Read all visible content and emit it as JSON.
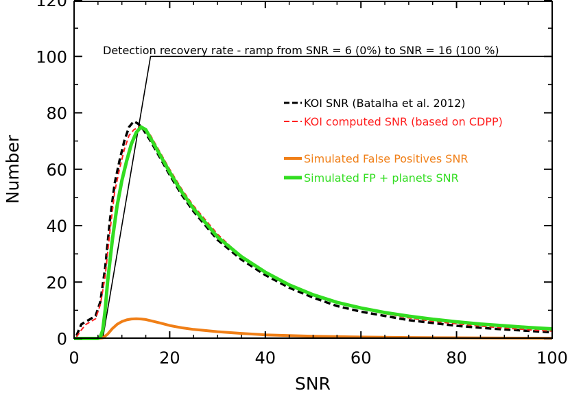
{
  "chart_data": {
    "type": "line",
    "title": "",
    "xlabel": "SNR",
    "ylabel": "Number",
    "xlim": [
      0,
      100
    ],
    "ylim": [
      0,
      120
    ],
    "xticks": [
      "0",
      "20",
      "40",
      "60",
      "80",
      "100"
    ],
    "yticks": [
      "0",
      "20",
      "40",
      "60",
      "80",
      "100",
      "120"
    ],
    "annotation": "Detection recovery rate - ramp from SNR = 6 (0%) to SNR = 16 (100 %)",
    "ramp": {
      "x": [
        6,
        16,
        100
      ],
      "y": [
        0,
        100,
        100
      ],
      "color": "#000000"
    },
    "series": [
      {
        "name": "KOI SNR (Batalha et al. 2012)",
        "style": "dashed",
        "color": "#000000",
        "x": [
          0.5,
          1.5,
          2.5,
          3.5,
          4.5,
          5.5,
          6.5,
          7.5,
          8.5,
          9.5,
          10.5,
          11.5,
          12.5,
          13.5,
          14.5,
          16,
          18,
          20,
          22.5,
          25,
          27.5,
          30,
          35,
          40,
          45,
          50,
          55,
          60,
          65,
          70,
          75,
          80,
          85,
          90,
          95,
          100
        ],
        "y": [
          1,
          5,
          6,
          7,
          8,
          13,
          25,
          42,
          55,
          63,
          70,
          75,
          77,
          76,
          74,
          70,
          64,
          58,
          51,
          45,
          40,
          35,
          28,
          22.5,
          18,
          14.5,
          11.5,
          9.5,
          8,
          6.5,
          5.5,
          4.5,
          3.8,
          3.2,
          2.7,
          2.2
        ]
      },
      {
        "name": "KOI computed SNR (based on CDPP)",
        "style": "dashed",
        "color": "#ff2020",
        "x": [
          0.5,
          1.5,
          2.5,
          3.5,
          4.5,
          5.5,
          6.5,
          7.5,
          8.5,
          9.5,
          10.5,
          11.5,
          12.5,
          13.5,
          14.5,
          16,
          18,
          20,
          22.5,
          25,
          27.5,
          30,
          35,
          40,
          45,
          50,
          55,
          60,
          65,
          70,
          75,
          80,
          85,
          90,
          95,
          100
        ],
        "y": [
          0.5,
          3,
          5,
          6,
          7,
          12,
          22,
          38,
          52,
          60,
          67,
          72,
          74,
          75,
          75,
          72,
          66,
          60,
          53,
          47,
          42,
          37,
          29,
          23.5,
          19,
          15.5,
          12.5,
          10.5,
          8.8,
          7.3,
          6.1,
          5.2,
          4.4,
          3.7,
          3.1,
          2.6
        ]
      },
      {
        "name": "Simulated False Positives SNR",
        "style": "solid",
        "color": "#f07f17",
        "x": [
          0,
          5,
          6,
          7,
          8,
          9,
          10,
          11,
          12,
          13,
          14,
          15,
          16,
          18,
          20,
          22.5,
          25,
          30,
          35,
          40,
          50,
          60,
          70,
          80,
          90,
          100
        ],
        "y": [
          0,
          0,
          0.2,
          1.5,
          3.5,
          5,
          6,
          6.6,
          6.9,
          7,
          6.9,
          6.7,
          6.3,
          5.5,
          4.6,
          3.8,
          3.2,
          2.4,
          1.8,
          1.3,
          0.8,
          0.5,
          0.35,
          0.25,
          0.15,
          0.1
        ]
      },
      {
        "name": "Simulated FP + planets SNR",
        "style": "solid",
        "color": "#33dd22",
        "x": [
          0,
          5,
          5.5,
          6,
          6.5,
          7,
          8,
          9,
          10,
          11,
          12,
          13,
          14,
          15,
          16,
          18,
          20,
          22.5,
          25,
          27.5,
          30,
          35,
          40,
          45,
          50,
          55,
          60,
          65,
          70,
          75,
          80,
          85,
          90,
          95,
          100
        ],
        "y": [
          0,
          0,
          0.5,
          3,
          10,
          20,
          35,
          47,
          56,
          63,
          69,
          73,
          75,
          74,
          71,
          65,
          59,
          52,
          46,
          41,
          36,
          29,
          23.5,
          19,
          15.5,
          12.8,
          10.8,
          9.2,
          7.9,
          6.8,
          5.9,
          5.1,
          4.5,
          3.9,
          3.4
        ]
      }
    ],
    "legend_position": "right"
  }
}
